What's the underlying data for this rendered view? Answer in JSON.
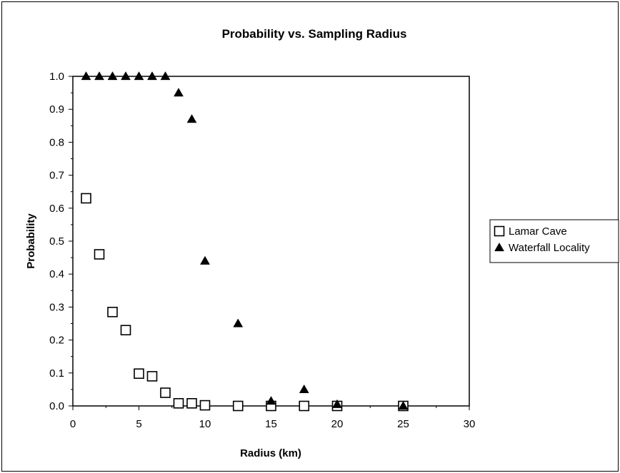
{
  "chart_data": {
    "type": "scatter",
    "title": "Probability vs. Sampling Radius",
    "xlabel": "Radius (km)",
    "ylabel": "Probability",
    "xlim": [
      0,
      30
    ],
    "ylim": [
      0,
      1.0
    ],
    "x_ticks": [
      "0",
      "5",
      "10",
      "15",
      "20",
      "25",
      "30"
    ],
    "y_ticks": [
      "0.0",
      "0.1",
      "0.2",
      "0.3",
      "0.4",
      "0.5",
      "0.6",
      "0.7",
      "0.8",
      "0.9",
      "1.0"
    ],
    "grid": false,
    "legend_position": "right",
    "series": [
      {
        "name": "Lamar Cave",
        "marker": "open-square",
        "color": "#000000",
        "points": [
          [
            1,
            0.63
          ],
          [
            2,
            0.46
          ],
          [
            3,
            0.285
          ],
          [
            4,
            0.23
          ],
          [
            5,
            0.098
          ],
          [
            6,
            0.09
          ],
          [
            7,
            0.04
          ],
          [
            8,
            0.008
          ],
          [
            9,
            0.008
          ],
          [
            10,
            0.002
          ],
          [
            12.5,
            0.0
          ],
          [
            15,
            0.0
          ],
          [
            17.5,
            0.0
          ],
          [
            20,
            0.0
          ],
          [
            25,
            0.0
          ]
        ]
      },
      {
        "name": "Waterfall Locality",
        "marker": "filled-triangle",
        "color": "#000000",
        "points": [
          [
            1,
            1.0
          ],
          [
            2,
            1.0
          ],
          [
            3,
            1.0
          ],
          [
            4,
            1.0
          ],
          [
            5,
            1.0
          ],
          [
            6,
            1.0
          ],
          [
            7,
            1.0
          ],
          [
            8,
            0.95
          ],
          [
            9,
            0.87
          ],
          [
            10,
            0.44
          ],
          [
            12.5,
            0.25
          ],
          [
            15,
            0.015
          ],
          [
            17.5,
            0.05
          ],
          [
            20,
            0.005
          ],
          [
            25,
            0.0
          ]
        ]
      }
    ]
  }
}
